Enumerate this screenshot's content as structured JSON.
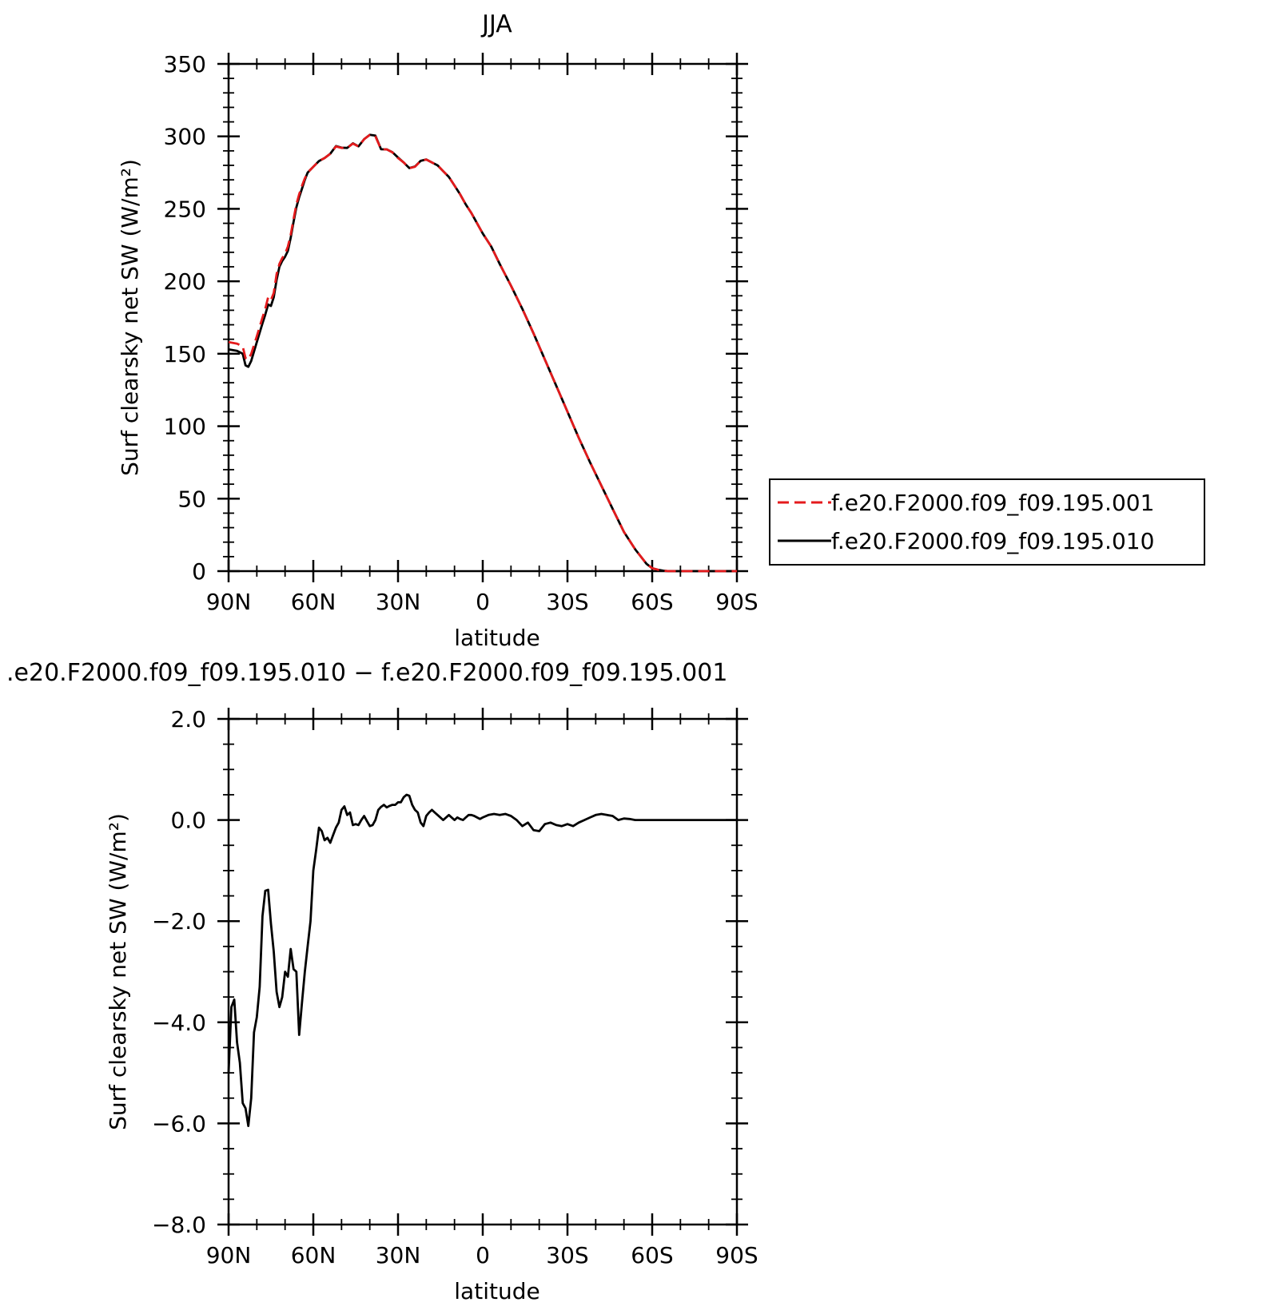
{
  "chart_data": [
    {
      "type": "line",
      "title": "JJA",
      "xlabel": "latitude",
      "ylabel": "Surf clearsky net SW (W/m²)",
      "xlim": [
        90,
        -90
      ],
      "ylim": [
        0,
        350
      ],
      "x_ticks": [
        90,
        60,
        30,
        0,
        -30,
        -60,
        -90
      ],
      "x_tick_labels": [
        "90N",
        "60N",
        "30N",
        "0",
        "30S",
        "60S",
        "90S"
      ],
      "y_ticks": [
        0,
        50,
        100,
        150,
        200,
        250,
        300,
        350
      ],
      "y_tick_labels": [
        "0",
        "50",
        "100",
        "150",
        "200",
        "250",
        "300",
        "350"
      ],
      "legend_position": "right",
      "series": [
        {
          "name": "f.e20.F2000.f09_f09.195.001",
          "color": "#e41a1c",
          "dash": "dashed",
          "x": [
            90,
            87,
            85,
            84,
            83,
            82,
            80,
            78,
            77,
            76,
            75,
            74,
            73,
            72,
            71,
            70,
            69,
            68,
            67,
            66,
            65,
            64,
            63,
            62,
            61,
            60,
            58,
            56,
            54,
            52,
            50,
            48,
            46,
            44,
            42,
            40,
            38,
            36,
            34,
            32,
            30,
            28,
            26,
            24,
            22,
            20,
            18,
            16,
            14,
            12,
            10,
            8,
            6,
            4,
            2,
            0,
            -3,
            -6,
            -10,
            -14,
            -18,
            -22,
            -26,
            -30,
            -34,
            -38,
            -42,
            -46,
            -50,
            -54,
            -58,
            -60,
            -62,
            -64,
            -66,
            -68,
            -70,
            -75,
            -80,
            -90
          ],
          "y": [
            158,
            157,
            155,
            147,
            146,
            150,
            162,
            175,
            181,
            189,
            187,
            192,
            205,
            212,
            216,
            219,
            224,
            232,
            243,
            253,
            260,
            266,
            271,
            275,
            277,
            279,
            283,
            285,
            288,
            293,
            292,
            292,
            295,
            293,
            298,
            301,
            300,
            291,
            291,
            289,
            285,
            282,
            278,
            279,
            283,
            284,
            282,
            280,
            276,
            272,
            266,
            260,
            253,
            247,
            240,
            233,
            224,
            212,
            197,
            181,
            164,
            146,
            128,
            110,
            92,
            75,
            59,
            43,
            27,
            15,
            5,
            2,
            1,
            0.3,
            0,
            0,
            0,
            0,
            0,
            0
          ]
        },
        {
          "name": "f.e20.F2000.f09_f09.195.010",
          "color": "#000000",
          "dash": "solid",
          "x": [
            90,
            87,
            85,
            84,
            83,
            82,
            80,
            78,
            77,
            76,
            75,
            74,
            73,
            72,
            71,
            70,
            69,
            68,
            67,
            66,
            65,
            64,
            63,
            62,
            61,
            60,
            58,
            56,
            54,
            52,
            50,
            48,
            46,
            44,
            42,
            40,
            38,
            36,
            34,
            32,
            30,
            28,
            26,
            24,
            22,
            20,
            18,
            16,
            14,
            12,
            10,
            8,
            6,
            4,
            2,
            0,
            -3,
            -6,
            -10,
            -14,
            -18,
            -22,
            -26,
            -30,
            -34,
            -38,
            -42,
            -46,
            -50,
            -54,
            -58,
            -60,
            -62,
            -64,
            -66,
            -68,
            -70,
            -75,
            -80,
            -90
          ],
          "y": [
            153,
            152,
            150,
            142,
            141,
            145,
            158,
            171,
            177,
            184,
            183,
            189,
            201,
            210,
            214,
            217,
            221,
            230,
            241,
            251,
            258,
            264,
            270,
            275,
            277,
            279,
            283,
            285,
            288,
            293.3,
            292.2,
            292,
            295.2,
            293.1,
            298.1,
            301.1,
            300.5,
            291.1,
            291,
            289.1,
            285.4,
            282,
            278.1,
            279.2,
            283.1,
            284.1,
            282,
            280,
            276,
            272,
            266,
            260,
            253,
            247,
            240,
            233,
            224,
            212,
            197,
            181,
            164,
            146,
            128,
            110,
            92,
            75,
            59,
            43,
            27,
            15,
            5,
            2,
            1,
            0.3,
            0,
            0,
            0,
            0,
            0,
            0
          ]
        }
      ]
    },
    {
      "type": "line",
      "title": ".e20.F2000.f09_f09.195.010 − f.e20.F2000.f09_f09.195.001",
      "xlabel": "latitude",
      "ylabel": "Surf clearsky net SW (W/m²)",
      "xlim": [
        90,
        -90
      ],
      "ylim": [
        -8,
        2
      ],
      "x_ticks": [
        90,
        60,
        30,
        0,
        -30,
        -60,
        -90
      ],
      "x_tick_labels": [
        "90N",
        "60N",
        "30N",
        "0",
        "30S",
        "60S",
        "90S"
      ],
      "y_ticks": [
        -8,
        -6,
        -4,
        -2,
        0,
        2
      ],
      "y_tick_labels": [
        "−8.0",
        "−6.0",
        "−4.0",
        "−2.0",
        "0.0",
        "2.0"
      ],
      "series": [
        {
          "color": "#000000",
          "x": [
            90,
            89,
            88,
            87,
            86,
            85,
            84,
            83,
            82,
            81,
            80,
            79,
            78,
            77,
            76,
            75,
            74,
            73,
            72,
            71,
            70,
            69,
            68,
            67,
            66,
            65,
            64,
            63,
            62,
            61,
            60,
            59,
            58,
            57,
            56,
            55,
            54,
            53,
            52,
            51,
            50,
            49,
            48,
            47,
            46,
            45,
            44,
            43,
            42,
            41,
            40,
            39,
            38,
            37,
            36,
            35,
            34,
            33,
            32,
            31,
            30,
            29,
            28,
            27,
            26,
            25,
            24,
            23,
            22,
            21,
            20,
            19,
            18,
            17,
            16,
            15,
            14,
            13,
            12,
            11,
            10,
            9,
            8,
            7,
            6,
            5,
            4,
            3,
            2,
            1,
            0,
            -2,
            -4,
            -6,
            -8,
            -10,
            -12,
            -14,
            -16,
            -18,
            -20,
            -22,
            -24,
            -26,
            -28,
            -30,
            -32,
            -34,
            -36,
            -38,
            -40,
            -42,
            -44,
            -46,
            -48,
            -50,
            -52,
            -54,
            -56,
            -58,
            -60,
            -62,
            -64,
            -66,
            -70,
            -75,
            -80,
            -85,
            -90
          ],
          "y": [
            -5,
            -3.7,
            -3.55,
            -4.4,
            -4.8,
            -5.6,
            -5.7,
            -6.05,
            -5.5,
            -4.2,
            -3.9,
            -3.3,
            -1.9,
            -1.4,
            -1.38,
            -2.05,
            -2.6,
            -3.4,
            -3.7,
            -3.5,
            -3.0,
            -3.1,
            -2.55,
            -2.95,
            -3.0,
            -4.25,
            -3.6,
            -3.0,
            -2.5,
            -2.0,
            -1.0,
            -0.6,
            -0.15,
            -0.22,
            -0.4,
            -0.35,
            -0.45,
            -0.3,
            -0.15,
            -0.05,
            0.2,
            0.27,
            0.1,
            0.15,
            -0.1,
            -0.08,
            -0.1,
            0.0,
            0.08,
            -0.02,
            -0.12,
            -0.1,
            0.0,
            0.2,
            0.26,
            0.3,
            0.25,
            0.28,
            0.3,
            0.3,
            0.35,
            0.35,
            0.45,
            0.5,
            0.48,
            0.3,
            0.2,
            0.15,
            -0.05,
            -0.12,
            0.08,
            0.15,
            0.2,
            0.15,
            0.1,
            0.05,
            0.0,
            0.05,
            0.1,
            0.05,
            0.0,
            0.05,
            0.02,
            0.0,
            0.05,
            0.1,
            0.1,
            0.08,
            0.05,
            0.02,
            0.05,
            0.1,
            0.12,
            0.1,
            0.12,
            0.08,
            0.0,
            -0.12,
            -0.05,
            -0.2,
            -0.22,
            -0.08,
            -0.05,
            -0.1,
            -0.12,
            -0.08,
            -0.12,
            -0.05,
            0.0,
            0.05,
            0.1,
            0.12,
            0.1,
            0.08,
            0.0,
            0.03,
            0.02,
            0.0,
            0.0,
            0.0,
            0,
            0,
            0,
            0,
            0,
            0,
            0,
            0,
            0
          ]
        }
      ]
    }
  ]
}
